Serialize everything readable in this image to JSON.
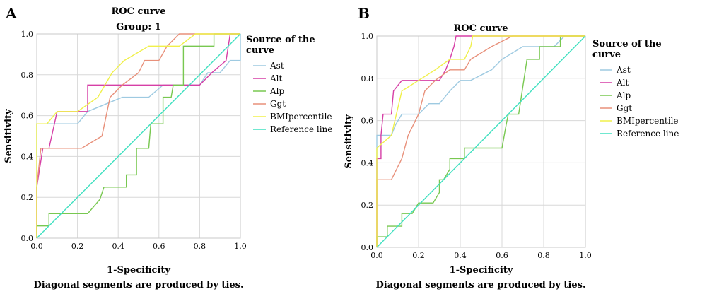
{
  "legend_title": [
    "Source of the",
    "curve"
  ],
  "xlabel": "1-Specificity",
  "ylabel": "Sensitivity",
  "footnote": "Diagonal segments are produced by ties.",
  "chart_data": [
    {
      "type": "line",
      "panel_label": "A",
      "title": "ROC curve",
      "subtitle": "Group: 1",
      "xlim": [
        0,
        1
      ],
      "ylim": [
        0,
        1
      ],
      "x_ticks": [
        "0.0",
        "0.2",
        "0.4",
        "0.6",
        "0.8",
        "1.0"
      ],
      "y_ticks": [
        "0.0",
        "0.2",
        "0.4",
        "0.6",
        "0.8",
        "1.0"
      ],
      "grid": true,
      "legend_position": "right",
      "series": [
        {
          "name": "Ast",
          "color": "#9ecae1",
          "points": [
            [
              0,
              0
            ],
            [
              0,
              0.56
            ],
            [
              0.2,
              0.56
            ],
            [
              0.25,
              0.62
            ],
            [
              0.42,
              0.69
            ],
            [
              0.55,
              0.69
            ],
            [
              0.62,
              0.75
            ],
            [
              0.8,
              0.75
            ],
            [
              0.84,
              0.81
            ],
            [
              0.9,
              0.81
            ],
            [
              0.95,
              0.87
            ],
            [
              1,
              0.87
            ],
            [
              1,
              1
            ]
          ]
        },
        {
          "name": "Alt",
          "color": "#d63fa6",
          "points": [
            [
              0,
              0
            ],
            [
              0,
              0.25
            ],
            [
              0.03,
              0.44
            ],
            [
              0.06,
              0.44
            ],
            [
              0.1,
              0.62
            ],
            [
              0.25,
              0.62
            ],
            [
              0.25,
              0.75
            ],
            [
              0.8,
              0.75
            ],
            [
              0.86,
              0.81
            ],
            [
              0.93,
              0.87
            ],
            [
              0.95,
              1
            ],
            [
              1,
              1
            ]
          ]
        },
        {
          "name": "Alp",
          "color": "#78c850",
          "points": [
            [
              0,
              0
            ],
            [
              0,
              0.06
            ],
            [
              0.06,
              0.06
            ],
            [
              0.06,
              0.12
            ],
            [
              0.25,
              0.12
            ],
            [
              0.31,
              0.19
            ],
            [
              0.33,
              0.25
            ],
            [
              0.44,
              0.25
            ],
            [
              0.44,
              0.31
            ],
            [
              0.49,
              0.31
            ],
            [
              0.49,
              0.44
            ],
            [
              0.55,
              0.44
            ],
            [
              0.56,
              0.56
            ],
            [
              0.62,
              0.56
            ],
            [
              0.62,
              0.69
            ],
            [
              0.66,
              0.69
            ],
            [
              0.67,
              0.75
            ],
            [
              0.72,
              0.75
            ],
            [
              0.72,
              0.94
            ],
            [
              0.87,
              0.94
            ],
            [
              0.87,
              1
            ],
            [
              1,
              1
            ]
          ]
        },
        {
          "name": "Ggt",
          "color": "#e8907a",
          "points": [
            [
              0,
              0
            ],
            [
              0,
              0.25
            ],
            [
              0.02,
              0.44
            ],
            [
              0.06,
              0.44
            ],
            [
              0.22,
              0.44
            ],
            [
              0.32,
              0.5
            ],
            [
              0.36,
              0.69
            ],
            [
              0.42,
              0.75
            ],
            [
              0.5,
              0.81
            ],
            [
              0.53,
              0.87
            ],
            [
              0.6,
              0.87
            ],
            [
              0.64,
              0.94
            ],
            [
              0.7,
              1
            ],
            [
              1,
              1
            ]
          ]
        },
        {
          "name": "BMIpercentile",
          "color": "#f0f04a",
          "points": [
            [
              0,
              0
            ],
            [
              0,
              0.56
            ],
            [
              0.05,
              0.56
            ],
            [
              0.1,
              0.62
            ],
            [
              0.2,
              0.62
            ],
            [
              0.3,
              0.69
            ],
            [
              0.37,
              0.81
            ],
            [
              0.43,
              0.87
            ],
            [
              0.55,
              0.94
            ],
            [
              0.7,
              0.94
            ],
            [
              0.78,
              1
            ],
            [
              1,
              1
            ]
          ]
        },
        {
          "name": "Reference line",
          "color": "#40e0c0",
          "points": [
            [
              0,
              0
            ],
            [
              1,
              1
            ]
          ]
        }
      ]
    },
    {
      "type": "line",
      "panel_label": "B",
      "title": "ROC curve",
      "subtitle": "",
      "xlim": [
        0,
        1
      ],
      "ylim": [
        0,
        1
      ],
      "x_ticks": [
        "0.0",
        "0.2",
        "0.4",
        "0.6",
        "0.8",
        "1.0"
      ],
      "y_ticks": [
        "0.0",
        "0.2",
        "0.4",
        "0.6",
        "0.8",
        "1.0"
      ],
      "grid": true,
      "legend_position": "right",
      "series": [
        {
          "name": "Ast",
          "color": "#9ecae1",
          "points": [
            [
              0,
              0
            ],
            [
              0,
              0.53
            ],
            [
              0.07,
              0.53
            ],
            [
              0.09,
              0.58
            ],
            [
              0.12,
              0.63
            ],
            [
              0.2,
              0.63
            ],
            [
              0.25,
              0.68
            ],
            [
              0.3,
              0.68
            ],
            [
              0.35,
              0.74
            ],
            [
              0.4,
              0.79
            ],
            [
              0.45,
              0.79
            ],
            [
              0.55,
              0.84
            ],
            [
              0.6,
              0.89
            ],
            [
              0.7,
              0.95
            ],
            [
              0.85,
              0.95
            ],
            [
              0.9,
              1
            ],
            [
              1,
              1
            ]
          ]
        },
        {
          "name": "Alt",
          "color": "#d63fa6",
          "points": [
            [
              0,
              0
            ],
            [
              0,
              0.42
            ],
            [
              0.02,
              0.42
            ],
            [
              0.02,
              0.53
            ],
            [
              0.03,
              0.63
            ],
            [
              0.07,
              0.63
            ],
            [
              0.08,
              0.74
            ],
            [
              0.12,
              0.79
            ],
            [
              0.3,
              0.79
            ],
            [
              0.33,
              0.84
            ],
            [
              0.35,
              0.89
            ],
            [
              0.37,
              0.95
            ],
            [
              0.38,
              1
            ],
            [
              1,
              1
            ]
          ]
        },
        {
          "name": "Alp",
          "color": "#78c850",
          "points": [
            [
              0,
              0
            ],
            [
              0,
              0.05
            ],
            [
              0.05,
              0.05
            ],
            [
              0.05,
              0.1
            ],
            [
              0.12,
              0.1
            ],
            [
              0.12,
              0.16
            ],
            [
              0.17,
              0.16
            ],
            [
              0.2,
              0.21
            ],
            [
              0.27,
              0.21
            ],
            [
              0.3,
              0.26
            ],
            [
              0.3,
              0.32
            ],
            [
              0.32,
              0.32
            ],
            [
              0.35,
              0.37
            ],
            [
              0.35,
              0.42
            ],
            [
              0.42,
              0.42
            ],
            [
              0.42,
              0.47
            ],
            [
              0.6,
              0.47
            ],
            [
              0.62,
              0.58
            ],
            [
              0.63,
              0.63
            ],
            [
              0.68,
              0.63
            ],
            [
              0.72,
              0.89
            ],
            [
              0.78,
              0.89
            ],
            [
              0.78,
              0.95
            ],
            [
              0.88,
              0.95
            ],
            [
              0.88,
              1
            ],
            [
              1,
              1
            ]
          ]
        },
        {
          "name": "Ggt",
          "color": "#e8907a",
          "points": [
            [
              0,
              0
            ],
            [
              0,
              0.32
            ],
            [
              0.07,
              0.32
            ],
            [
              0.12,
              0.42
            ],
            [
              0.15,
              0.53
            ],
            [
              0.2,
              0.63
            ],
            [
              0.23,
              0.74
            ],
            [
              0.28,
              0.79
            ],
            [
              0.35,
              0.84
            ],
            [
              0.42,
              0.84
            ],
            [
              0.45,
              0.89
            ],
            [
              0.55,
              0.95
            ],
            [
              0.65,
              1
            ],
            [
              1,
              1
            ]
          ]
        },
        {
          "name": "BMIpercentile",
          "color": "#f0f04a",
          "points": [
            [
              0,
              0
            ],
            [
              0,
              0.47
            ],
            [
              0.07,
              0.53
            ],
            [
              0.12,
              0.74
            ],
            [
              0.2,
              0.79
            ],
            [
              0.28,
              0.84
            ],
            [
              0.35,
              0.89
            ],
            [
              0.42,
              0.89
            ],
            [
              0.45,
              0.95
            ],
            [
              0.46,
              1
            ],
            [
              1,
              1
            ]
          ]
        },
        {
          "name": "Reference line",
          "color": "#40e0c0",
          "points": [
            [
              0,
              0
            ],
            [
              1,
              1
            ]
          ]
        }
      ]
    }
  ]
}
